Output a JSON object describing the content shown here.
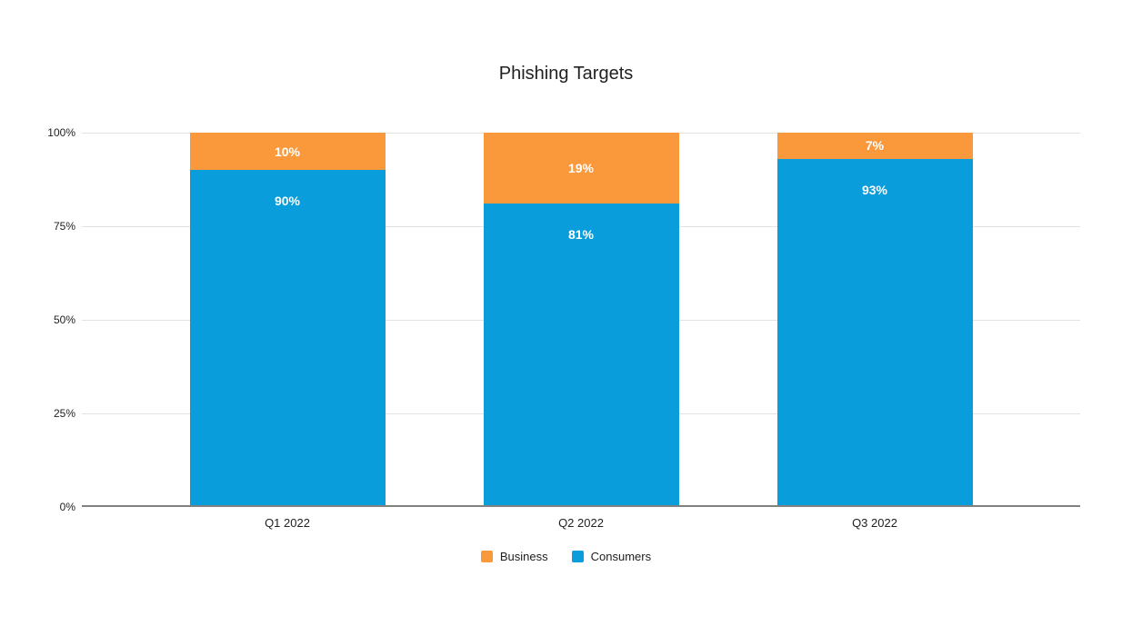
{
  "chart_data": {
    "type": "bar",
    "stacked": true,
    "stack_mode": "percent",
    "title": "Phishing Targets",
    "categories": [
      "Q1 2022",
      "Q2 2022",
      "Q3 2022"
    ],
    "series": [
      {
        "name": "Business",
        "color": "#FA993C",
        "values": [
          10,
          19,
          7
        ],
        "data_labels": [
          "10%",
          "19%",
          "7%"
        ]
      },
      {
        "name": "Consumers",
        "color": "#0A9DDC",
        "values": [
          90,
          81,
          93
        ],
        "data_labels": [
          "90%",
          "81%",
          "93%"
        ]
      }
    ],
    "xlabel": "",
    "ylabel": "",
    "ylim": [
      0,
      100
    ],
    "yticks": [
      "0%",
      "25%",
      "50%",
      "75%",
      "100%"
    ],
    "grid": true,
    "gridline_color": "#e3e3e3",
    "baseline_color": "#818181",
    "data_label_color": "#ffffff",
    "legend_position": "bottom"
  }
}
